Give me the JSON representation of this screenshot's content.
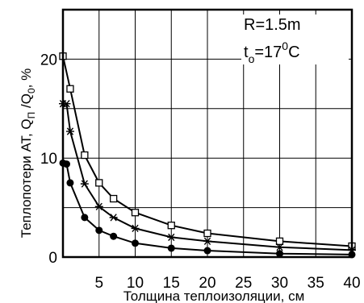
{
  "chart_data": {
    "type": "line",
    "xlabel": "Толщина теплоизоляции, см",
    "ylabel_main": "Теплопотери АТ, Q",
    "ylabel_sub1": "П",
    "ylabel_mid": " /Q",
    "ylabel_sub2": "0",
    "ylabel_end": ", %",
    "xlim": [
      0,
      40
    ],
    "ylim": [
      0,
      25
    ],
    "x_ticks": [
      5,
      10,
      15,
      20,
      25,
      30,
      35,
      40
    ],
    "y_ticks": [
      0,
      10,
      20
    ],
    "grid": true,
    "annotations": {
      "radius": "R=1.5m",
      "temp_main": "t",
      "temp_sub": "o",
      "temp_eq": "=17",
      "temp_sup": "0",
      "temp_unit": "C"
    },
    "series": [
      {
        "marker": "open-square",
        "x": [
          0,
          1,
          3,
          5,
          7,
          10,
          15,
          20,
          30,
          40
        ],
        "y": [
          20.3,
          17.0,
          10.3,
          7.5,
          5.9,
          4.5,
          3.2,
          2.4,
          1.6,
          1.1
        ]
      },
      {
        "marker": "asterisk",
        "x": [
          0,
          0.5,
          1,
          3,
          5,
          7,
          10,
          15,
          20,
          30,
          40
        ],
        "y": [
          15.5,
          15.5,
          12.7,
          7.4,
          5.1,
          4.0,
          2.9,
          2.0,
          1.6,
          1.0,
          0.7
        ]
      },
      {
        "marker": "filled-circle",
        "x": [
          0,
          0.5,
          1,
          3,
          5,
          7,
          10,
          15,
          20,
          30,
          40
        ],
        "y": [
          9.5,
          9.4,
          7.5,
          4.0,
          2.7,
          2.1,
          1.4,
          0.9,
          0.65,
          0.35,
          0.25
        ]
      }
    ]
  }
}
